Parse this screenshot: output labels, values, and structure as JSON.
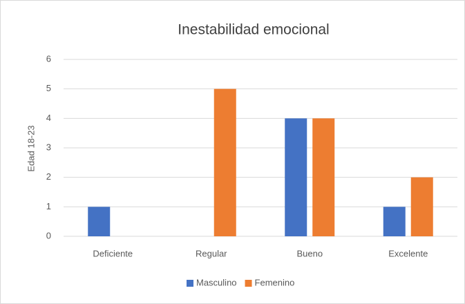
{
  "chart_data": {
    "type": "bar",
    "title": "Inestabilidad emocional",
    "y_label": "Edad 18-23",
    "categories": [
      "Deficiente",
      "Regular",
      "Bueno",
      "Excelente"
    ],
    "series": [
      {
        "name": "Masculino",
        "color": "#4472c4",
        "values": [
          1,
          0,
          4,
          1
        ]
      },
      {
        "name": "Femenino",
        "color": "#ed7d31",
        "values": [
          0,
          5,
          4,
          2
        ]
      }
    ],
    "ylim": [
      0,
      6
    ],
    "yticks": [
      0,
      1,
      2,
      3,
      4,
      5,
      6
    ],
    "grid": true,
    "legend": "bottom"
  }
}
